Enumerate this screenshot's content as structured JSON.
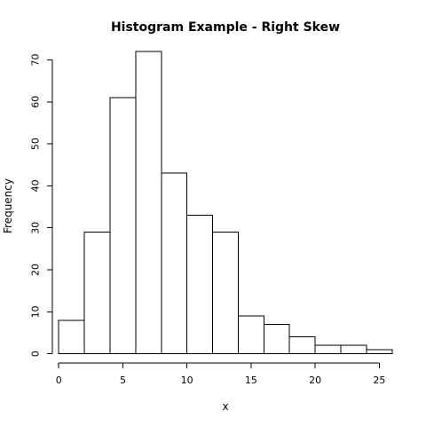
{
  "chart_data": {
    "type": "bar",
    "title": "Histogram Example - Right Skew",
    "xlabel": "x",
    "ylabel": "Frequency",
    "bins": [
      [
        0,
        2
      ],
      [
        2,
        4
      ],
      [
        4,
        6
      ],
      [
        6,
        8
      ],
      [
        8,
        10
      ],
      [
        10,
        12
      ],
      [
        12,
        14
      ],
      [
        14,
        16
      ],
      [
        16,
        18
      ],
      [
        18,
        20
      ],
      [
        20,
        22
      ],
      [
        22,
        24
      ],
      [
        24,
        26
      ]
    ],
    "values": [
      8,
      29,
      61,
      72,
      43,
      33,
      29,
      9,
      7,
      4,
      2,
      2,
      1
    ],
    "xticks": [
      0,
      5,
      10,
      15,
      20,
      25
    ],
    "yticks": [
      0,
      10,
      20,
      30,
      40,
      50,
      60,
      70
    ],
    "xlim": [
      -0.5,
      26.5
    ],
    "ylim": [
      -0.5,
      72
    ],
    "grid": false,
    "legend": "none"
  }
}
